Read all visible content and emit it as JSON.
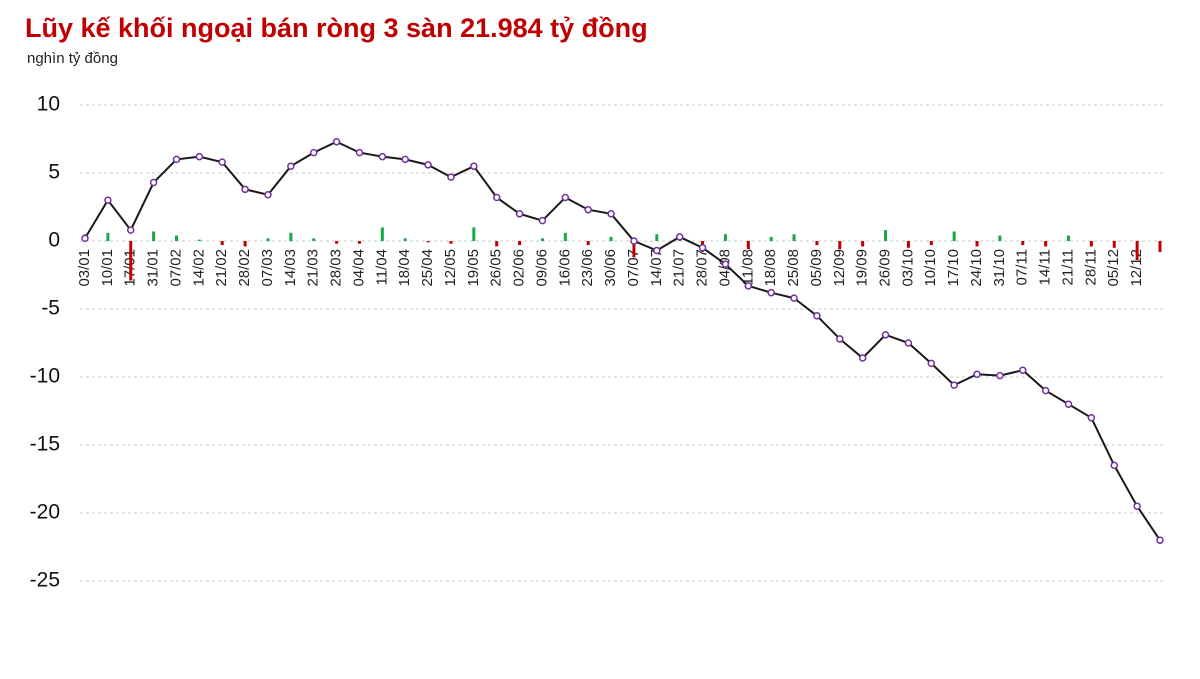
{
  "chart_data": {
    "type": "combo",
    "title": "Lũy kế khối ngoại bán ròng 3 sàn 21.984 tỷ đồng",
    "subtitle": "nghìn tỷ đồng",
    "categories": [
      "03/01",
      "10/01",
      "17/01",
      "31/01",
      "07/02",
      "14/02",
      "21/02",
      "28/02",
      "07/03",
      "14/03",
      "21/03",
      "28/03",
      "04/04",
      "11/04",
      "18/04",
      "25/04",
      "12/05",
      "19/05",
      "26/05",
      "02/06",
      "09/06",
      "16/06",
      "23/06",
      "30/06",
      "07/07",
      "14/07",
      "21/07",
      "28/07",
      "04/08",
      "11/08",
      "18/08",
      "25/08",
      "05/09",
      "12/09",
      "19/09",
      "26/09",
      "03/10",
      "10/10",
      "17/10",
      "24/10",
      "31/10",
      "07/11",
      "14/11",
      "21/11",
      "28/11",
      "05/12",
      "12/12",
      null
    ],
    "series": [
      {
        "type": "bar",
        "positive_color": "#1aa64a",
        "negative_color": "#c00000",
        "values": [
          0.5,
          0.6,
          -2.9,
          0.7,
          0.4,
          0.1,
          -0.3,
          -0.4,
          0.2,
          0.6,
          0.2,
          -0.2,
          -0.2,
          1.0,
          0.2,
          -0.1,
          -0.2,
          1.0,
          -0.4,
          -0.3,
          0.2,
          0.6,
          -0.3,
          0.3,
          -1.2,
          0.5,
          0.2,
          -0.8,
          0.5,
          -0.6,
          0.3,
          0.5,
          -0.3,
          -0.6,
          -0.4,
          0.8,
          -0.5,
          -0.3,
          0.7,
          -0.4,
          0.4,
          -0.3,
          -0.4,
          0.4,
          -0.4,
          -0.5,
          -1.4,
          -0.8
        ]
      },
      {
        "type": "line",
        "color": "#1a1a1a",
        "marker_color": "#7030a0",
        "values": [
          0.2,
          3.0,
          0.8,
          4.3,
          6.0,
          6.2,
          5.8,
          3.8,
          3.4,
          5.5,
          6.5,
          7.3,
          6.5,
          6.2,
          6.0,
          5.6,
          4.7,
          5.5,
          3.2,
          2.0,
          1.5,
          3.2,
          2.3,
          2.0,
          0,
          -0.7,
          0.3,
          -0.5,
          -1.7,
          -3.3,
          -3.8,
          -4.2,
          -5.5,
          -7.2,
          -8.6,
          -6.9,
          -7.5,
          -9.0,
          -10.6,
          -9.8,
          -9.9,
          -9.5,
          -11.0,
          -12.0,
          -13.0,
          -16.5,
          -19.5,
          -22.0
        ]
      }
    ],
    "ylim": [
      -25,
      10
    ],
    "yticks": [
      10,
      5,
      0,
      -5,
      -10,
      -15,
      -20,
      -25
    ],
    "grid": true
  }
}
